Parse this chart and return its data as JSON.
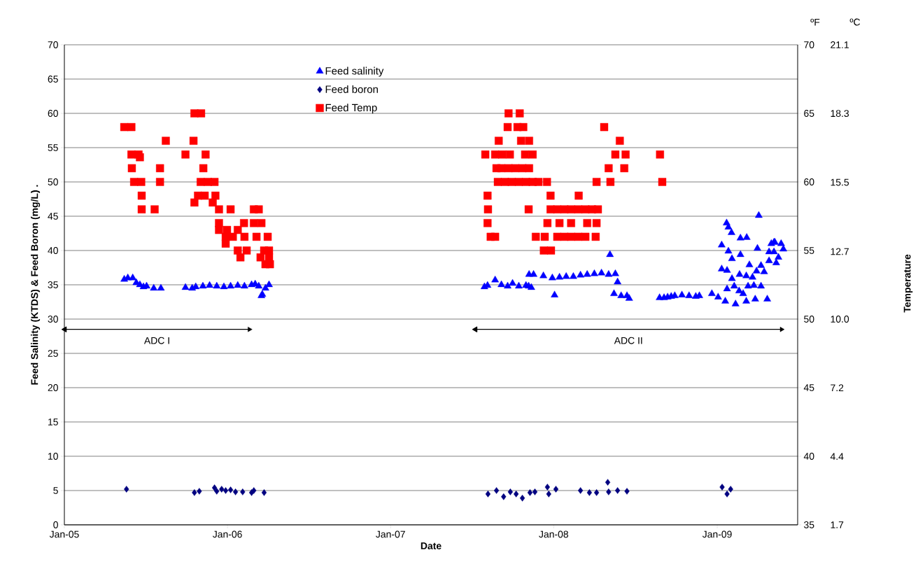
{
  "chart_data": {
    "type": "scatter",
    "xlabel": "Date",
    "ylabel": "Feed Salinity (KTDS)  &  Feed Boron (mg/L)      .",
    "y2label": "ºF",
    "y3label": "ºC",
    "annotations": [
      "Temperature"
    ],
    "xlim": [
      "2005-01-01",
      "2009-06-30"
    ],
    "xticks": [
      {
        "value": "2005-01-01",
        "label": "Jan-05"
      },
      {
        "value": "2006-01-01",
        "label": "Jan-06"
      },
      {
        "value": "2007-01-01",
        "label": "Jan-07"
      },
      {
        "value": "2008-01-01",
        "label": "Jan-08"
      },
      {
        "value": "2009-01-01",
        "label": "Jan-09"
      }
    ],
    "ylim": [
      0,
      70
    ],
    "yticks": [
      0,
      5,
      10,
      15,
      20,
      25,
      30,
      35,
      40,
      45,
      50,
      55,
      60,
      65,
      70
    ],
    "y2lim": [
      35,
      70
    ],
    "y2ticks": [
      35,
      40,
      45,
      50,
      55,
      60,
      65,
      70
    ],
    "y3lim": [
      1.67,
      21.11
    ],
    "y3ticks": [
      {
        "value": 1.67,
        "label": "1.7"
      },
      {
        "value": 4.44,
        "label": "4.4"
      },
      {
        "value": 7.22,
        "label": "7.2"
      },
      {
        "value": 10.0,
        "label": "10.0"
      },
      {
        "value": 12.74,
        "label": "12.7"
      },
      {
        "value": 15.54,
        "label": "15.5"
      },
      {
        "value": 18.33,
        "label": "18.3"
      },
      {
        "value": 21.11,
        "label": "21.1"
      }
    ],
    "grid": "y",
    "legend": "top",
    "series": [
      {
        "type": "line",
        "name": "ADC I",
        "color": "#000000",
        "marker": "triangle",
        "x": [
          "2005-01-02",
          "2006-02-19"
        ],
        "values": [
          28.5,
          28.5
        ]
      },
      {
        "type": "line",
        "name": "ADC II",
        "color": "#000000",
        "marker": "triangle",
        "x": [
          "2007-07-10",
          "2009-05-25"
        ],
        "values": [
          28.5,
          28.5
        ]
      },
      {
        "name": "Feed salinity",
        "color": "#0000ff",
        "marker": "triangle",
        "x": [
          "2005-05-15",
          "2005-05-23",
          "2005-06-03",
          "2005-06-11",
          "2005-06-19",
          "2005-06-27",
          "2005-07-04",
          "2005-07-20",
          "2005-08-05",
          "2005-09-29",
          "2005-10-14",
          "2005-10-22",
          "2005-11-07",
          "2005-11-22",
          "2005-12-08",
          "2005-12-24",
          "2006-01-08",
          "2006-01-24",
          "2006-02-08",
          "2006-02-24",
          "2006-03-04",
          "2006-03-12",
          "2006-03-18",
          "2006-03-20",
          "2006-03-27",
          "2006-04-04",
          "2007-07-30",
          "2007-08-06",
          "2007-08-23",
          "2007-09-06",
          "2007-09-20",
          "2007-10-01",
          "2007-10-15",
          "2007-10-31",
          "2007-11-06",
          "2007-11-07",
          "2007-11-12",
          "2007-11-17",
          "2007-12-09",
          "2007-12-29",
          "2008-01-03",
          "2008-01-14",
          "2008-01-29",
          "2008-02-14",
          "2008-03-01",
          "2008-03-16",
          "2008-04-01",
          "2008-04-17",
          "2008-05-03",
          "2008-05-06",
          "2008-05-15",
          "2008-05-18",
          "2008-05-23",
          "2008-05-31",
          "2008-06-13",
          "2008-06-18",
          "2008-08-25",
          "2008-09-04",
          "2008-09-12",
          "2008-09-20",
          "2008-09-28",
          "2008-10-14",
          "2008-10-30",
          "2008-11-14",
          "2008-11-22",
          "2008-12-20",
          "2009-01-03",
          "2009-01-11",
          "2009-01-11",
          "2009-01-19",
          "2009-01-22",
          "2009-01-23",
          "2009-01-23",
          "2009-01-26",
          "2009-01-26",
          "2009-02-02",
          "2009-02-03",
          "2009-02-03",
          "2009-02-08",
          "2009-02-11",
          "2009-02-19",
          "2009-02-20",
          "2009-02-22",
          "2009-02-22",
          "2009-02-28",
          "2009-03-07",
          "2009-03-07",
          "2009-03-08",
          "2009-03-11",
          "2009-03-14",
          "2009-03-21",
          "2009-03-24",
          "2009-03-27",
          "2009-03-30",
          "2009-04-01",
          "2009-04-04",
          "2009-04-09",
          "2009-04-09",
          "2009-04-16",
          "2009-04-23",
          "2009-04-27",
          "2009-04-27",
          "2009-05-02",
          "2009-05-08",
          "2009-05-08",
          "2009-05-10",
          "2009-05-13",
          "2009-05-18",
          "2009-05-24",
          "2009-05-29"
        ],
        "values": [
          35.8,
          36,
          36,
          35.3,
          35,
          34.7,
          34.8,
          34.5,
          34.5,
          34.6,
          34.5,
          34.7,
          34.8,
          34.9,
          34.8,
          34.7,
          34.8,
          34.9,
          34.8,
          35,
          35.1,
          34.8,
          33.4,
          33.6,
          34.5,
          35,
          34.7,
          34.9,
          35.7,
          35,
          34.8,
          35.2,
          34.8,
          34.9,
          34.8,
          36.5,
          34.6,
          36.5,
          36.3,
          36,
          33.5,
          36.1,
          36.2,
          36.2,
          36.4,
          36.5,
          36.6,
          36.7,
          36.5,
          39.4,
          33.7,
          36.6,
          35.4,
          33.4,
          33.4,
          33,
          33.1,
          33.1,
          33.2,
          33.3,
          33.4,
          33.5,
          33.4,
          33.3,
          33.4,
          33.7,
          33.2,
          40.8,
          37.3,
          32.6,
          44,
          37.1,
          34.4,
          43.4,
          39.9,
          42.6,
          38.8,
          35.9,
          34.8,
          32.2,
          34.1,
          36.5,
          41.8,
          39.4,
          33.7,
          36.3,
          32.6,
          41.9,
          34.8,
          37.9,
          36.1,
          34.9,
          32.9,
          37,
          40.3,
          45.1,
          37.8,
          34.8,
          36.9,
          32.9,
          39.8,
          38.5,
          41,
          41.2,
          39.8,
          41.2,
          38.2,
          39,
          41,
          40.2
        ]
      },
      {
        "name": "Feed boron",
        "color": "#000080",
        "marker": "diamond",
        "x": [
          "2005-05-20",
          "2005-10-19",
          "2005-10-30",
          "2005-12-03",
          "2005-12-08",
          "2005-12-19",
          "2005-12-28",
          "2006-01-08",
          "2006-01-19",
          "2006-02-04",
          "2006-02-24",
          "2006-03-01",
          "2006-03-24",
          "2007-08-07",
          "2007-08-26",
          "2007-09-11",
          "2007-09-26",
          "2007-10-09",
          "2007-10-23",
          "2007-11-09",
          "2007-11-20",
          "2007-12-18",
          "2007-12-21",
          "2008-01-06",
          "2008-03-01",
          "2008-03-21",
          "2008-04-06",
          "2008-05-01",
          "2008-05-03",
          "2008-05-23",
          "2008-06-13",
          "2009-01-12",
          "2009-01-23",
          "2009-01-31"
        ],
        "values": [
          5.2,
          4.7,
          4.9,
          5.4,
          4.9,
          5.2,
          5.0,
          5.1,
          4.8,
          4.8,
          4.7,
          5.0,
          4.7,
          4.5,
          5.0,
          4.1,
          4.8,
          4.5,
          3.9,
          4.7,
          4.8,
          5.5,
          4.5,
          5.2,
          5.0,
          4.7,
          4.7,
          6.2,
          4.8,
          5.0,
          4.9,
          5.5,
          4.5,
          5.2
        ]
      },
      {
        "name": "Feed Temp",
        "color": "#ff0000",
        "marker": "square",
        "axis": "y2",
        "x": [
          "2005-05-15",
          "2005-05-31",
          "2005-08-16",
          "2005-10-19",
          "2005-11-03",
          "2005-10-17",
          "2005-05-31",
          "2005-06-16",
          "2005-06-19",
          "2005-09-29",
          "2005-11-13",
          "2005-06-01",
          "2005-08-03",
          "2005-11-08",
          "2005-06-06",
          "2005-06-22",
          "2005-08-03",
          "2005-11-02",
          "2005-11-18",
          "2005-12-03",
          "2005-06-23",
          "2005-10-27",
          "2005-11-11",
          "2005-12-05",
          "2005-06-23",
          "2005-07-22",
          "2005-10-19",
          "2005-11-29",
          "2005-12-13",
          "2006-01-08",
          "2006-03-01",
          "2006-03-12",
          "2005-12-13",
          "2006-02-07",
          "2006-03-01",
          "2006-03-18",
          "2005-12-13",
          "2005-12-31",
          "2006-01-24",
          "2005-12-28",
          "2006-01-13",
          "2006-02-08",
          "2006-03-07",
          "2006-04-01",
          "2005-12-28",
          "2006-01-24",
          "2006-02-13",
          "2006-03-24",
          "2006-04-04",
          "2006-01-30",
          "2006-03-16",
          "2006-04-04",
          "2006-03-27",
          "2006-04-06",
          "2007-09-22",
          "2007-10-17",
          "2007-09-20",
          "2007-10-12",
          "2007-10-25",
          "2008-04-23",
          "2007-08-31",
          "2007-10-20",
          "2007-11-07",
          "2008-05-28",
          "2007-08-01",
          "2007-08-23",
          "2007-09-08",
          "2007-09-25",
          "2007-10-29",
          "2007-11-15",
          "2008-05-18",
          "2008-06-10",
          "2008-08-26",
          "2007-08-26",
          "2007-09-06",
          "2007-09-22",
          "2007-10-07",
          "2007-10-23",
          "2007-11-07",
          "2008-05-03",
          "2008-06-07",
          "2007-08-29",
          "2007-09-14",
          "2007-09-29",
          "2007-10-15",
          "2007-10-31",
          "2007-11-15",
          "2007-11-28",
          "2007-12-17",
          "2008-04-06",
          "2008-05-07",
          "2008-08-31",
          "2007-08-06",
          "2007-12-25",
          "2008-02-26",
          "2007-08-07",
          "2007-11-06",
          "2007-12-25",
          "2008-01-09",
          "2008-01-25",
          "2008-02-09",
          "2008-02-25",
          "2008-03-12",
          "2008-03-27",
          "2008-04-09",
          "2007-08-06",
          "2007-12-18",
          "2008-01-14",
          "2008-02-09",
          "2008-03-16",
          "2008-04-06",
          "2007-08-13",
          "2007-08-23",
          "2007-11-22",
          "2007-12-12",
          "2008-01-09",
          "2008-01-25",
          "2008-02-09",
          "2008-02-25",
          "2008-03-12",
          "2008-04-04",
          "2007-12-10",
          "2007-12-26"
        ],
        "values": [
          64,
          64,
          63,
          65,
          65,
          63,
          62,
          62,
          61.8,
          62,
          62,
          61,
          61,
          61,
          60,
          60,
          60,
          60,
          60,
          60,
          59,
          59,
          59,
          59,
          58,
          58,
          58.5,
          58.5,
          58,
          58,
          58,
          58,
          57,
          57,
          57,
          57,
          56.5,
          56.5,
          56.5,
          56,
          56,
          56,
          56,
          56,
          55.5,
          55,
          55,
          55,
          55,
          54.5,
          54.5,
          54.5,
          54,
          54,
          65,
          65,
          64,
          64,
          64,
          64,
          63,
          63,
          63,
          63,
          62,
          62,
          62,
          62,
          62,
          62,
          62,
          62,
          62,
          61,
          61,
          61,
          61,
          61,
          61,
          61,
          61,
          60,
          60,
          60,
          60,
          60,
          60,
          60,
          60,
          60,
          60,
          60,
          59,
          59,
          59,
          58,
          58,
          58,
          58,
          58,
          58,
          58,
          58,
          58,
          58,
          57,
          57,
          57,
          57,
          57,
          57,
          56,
          56,
          56,
          56,
          56,
          56,
          56,
          56,
          56,
          56,
          55,
          55
        ]
      }
    ]
  }
}
